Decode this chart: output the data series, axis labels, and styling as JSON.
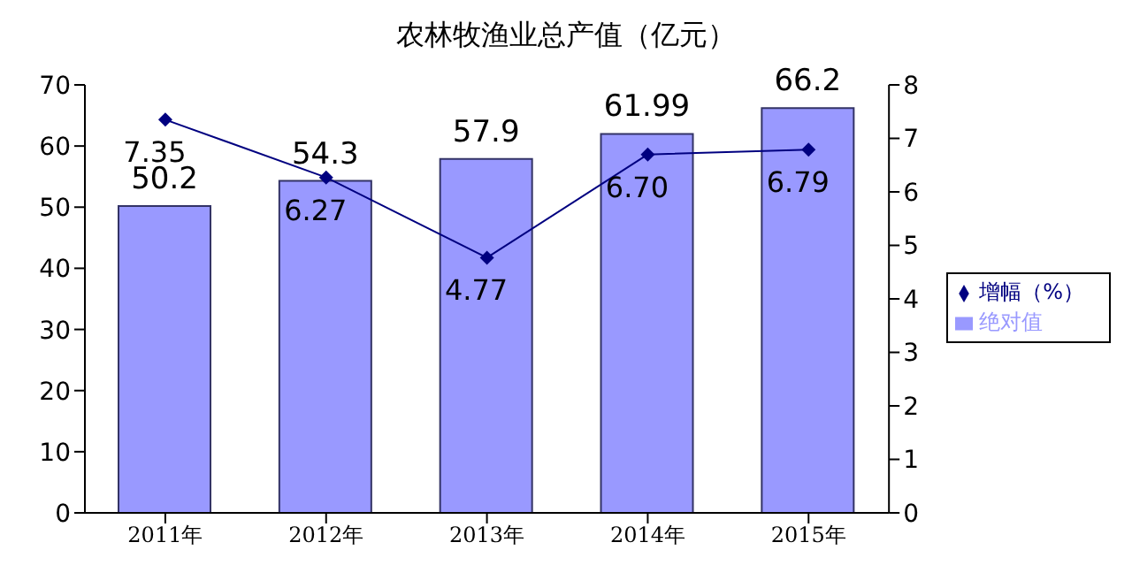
{
  "chart_data": {
    "type": "bar",
    "title": "农林牧渔业总产值（亿元）",
    "categories": [
      "2011年",
      "2012年",
      "2013年",
      "2014年",
      "2015年"
    ],
    "series": [
      {
        "name": "绝对值",
        "color": "#9999ff",
        "values": [
          50.2,
          54.3,
          57.9,
          61.99,
          66.2
        ],
        "value_labels": [
          "50.2",
          "54.3",
          "57.9",
          "61.99",
          "66.2"
        ]
      },
      {
        "name": "增幅（%）",
        "type": "line",
        "axis": "y2",
        "color": "#000080",
        "values": [
          7.35,
          6.27,
          4.77,
          6.7,
          6.79
        ],
        "value_labels": [
          "7.35",
          "6.27",
          "4.77",
          "6.70",
          "6.79"
        ]
      }
    ],
    "ylim": [
      0,
      70
    ],
    "yticks": [
      0,
      10,
      20,
      30,
      40,
      50,
      60,
      70
    ],
    "y2lim": [
      0,
      8
    ],
    "y2ticks": [
      0,
      1,
      2,
      3,
      4,
      5,
      6,
      7,
      8
    ],
    "legend": "right",
    "marker": "diamond",
    "line_style": "solid"
  }
}
